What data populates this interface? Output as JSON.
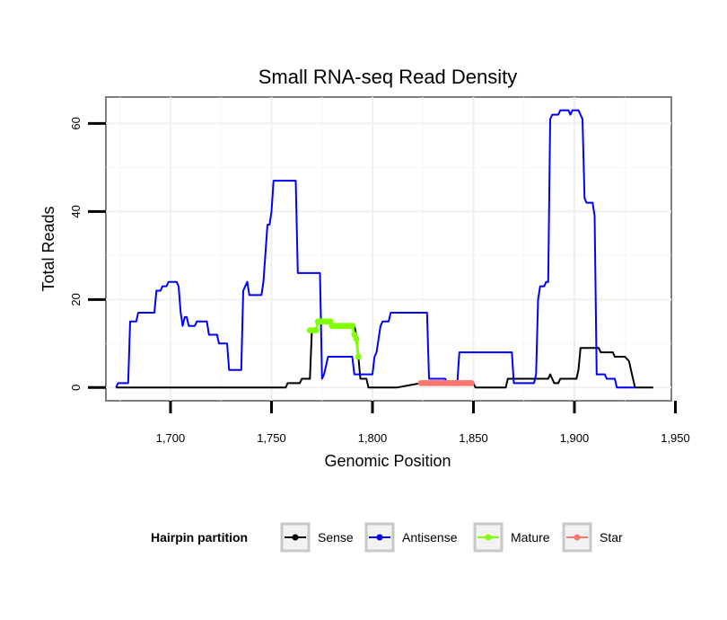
{
  "chart_data": {
    "type": "line",
    "title": "Small RNA-seq Read Density",
    "xlabel": "Genomic Position",
    "ylabel": "Total Reads",
    "xlim": [
      1668,
      1948
    ],
    "ylim": [
      -3,
      66
    ],
    "x_ticks": [
      1700,
      1750,
      1800,
      1850,
      1900,
      1950
    ],
    "x_tick_labels": [
      "1,700",
      "1,750",
      "1,800",
      "1,850",
      "1,900",
      "1,950"
    ],
    "y_ticks": [
      0,
      20,
      40,
      60
    ],
    "y_tick_labels": [
      "0",
      "20",
      "40",
      "60"
    ],
    "grid": true,
    "legend": {
      "title": "Hairpin partition",
      "position": "bottom",
      "entries": [
        "Sense",
        "Antisense",
        "Mature",
        "Star"
      ]
    },
    "series": [
      {
        "name": "Sense",
        "color": "#000000",
        "style": "line",
        "points": [
          [
            1673,
            0
          ],
          [
            1757,
            0
          ],
          [
            1758,
            1
          ],
          [
            1763,
            1
          ],
          [
            1764,
            1
          ],
          [
            1765,
            2
          ],
          [
            1769,
            2
          ],
          [
            1770,
            13
          ],
          [
            1772,
            13
          ],
          [
            1773,
            15
          ],
          [
            1779,
            15
          ],
          [
            1780,
            14
          ],
          [
            1791,
            14
          ],
          [
            1792,
            12
          ],
          [
            1793,
            7
          ],
          [
            1794,
            2
          ],
          [
            1797,
            2
          ],
          [
            1798,
            0
          ],
          [
            1812,
            0
          ],
          [
            1824,
            1
          ],
          [
            1850,
            1
          ],
          [
            1851,
            0
          ],
          [
            1866,
            0
          ],
          [
            1867,
            2
          ],
          [
            1887,
            2
          ],
          [
            1888,
            3
          ],
          [
            1890,
            1
          ],
          [
            1892,
            1
          ],
          [
            1893,
            2
          ],
          [
            1901,
            2
          ],
          [
            1902,
            4
          ],
          [
            1903,
            9
          ],
          [
            1912,
            9
          ],
          [
            1913,
            8
          ],
          [
            1919,
            8
          ],
          [
            1920,
            7
          ],
          [
            1925,
            7
          ],
          [
            1927,
            6
          ],
          [
            1928,
            4
          ],
          [
            1930,
            0
          ],
          [
            1939,
            0
          ]
        ]
      },
      {
        "name": "Antisense",
        "color": "#0000ff",
        "style": "line",
        "points": [
          [
            1673,
            0
          ],
          [
            1674,
            1
          ],
          [
            1679,
            1
          ],
          [
            1680,
            15
          ],
          [
            1683,
            15
          ],
          [
            1684,
            17
          ],
          [
            1692,
            17
          ],
          [
            1693,
            22
          ],
          [
            1695,
            22
          ],
          [
            1696,
            23
          ],
          [
            1698,
            23
          ],
          [
            1699,
            24
          ],
          [
            1703,
            24
          ],
          [
            1704,
            23
          ],
          [
            1705,
            17
          ],
          [
            1706,
            14
          ],
          [
            1707,
            16
          ],
          [
            1708,
            16
          ],
          [
            1709,
            14
          ],
          [
            1712,
            14
          ],
          [
            1713,
            15
          ],
          [
            1718,
            15
          ],
          [
            1719,
            12
          ],
          [
            1723,
            12
          ],
          [
            1724,
            10
          ],
          [
            1728,
            10
          ],
          [
            1729,
            4
          ],
          [
            1735,
            4
          ],
          [
            1736,
            22
          ],
          [
            1738,
            24
          ],
          [
            1739,
            21
          ],
          [
            1745,
            21
          ],
          [
            1746,
            24
          ],
          [
            1748,
            37
          ],
          [
            1749,
            37
          ],
          [
            1750,
            40
          ],
          [
            1751,
            47
          ],
          [
            1762,
            47
          ],
          [
            1763,
            26
          ],
          [
            1774,
            26
          ],
          [
            1775,
            2
          ],
          [
            1776,
            3
          ],
          [
            1777,
            5
          ],
          [
            1778,
            7
          ],
          [
            1790,
            7
          ],
          [
            1791,
            3
          ],
          [
            1795,
            3
          ],
          [
            1800,
            3
          ],
          [
            1801,
            7
          ],
          [
            1802,
            8
          ],
          [
            1804,
            14
          ],
          [
            1805,
            15
          ],
          [
            1808,
            15
          ],
          [
            1809,
            17
          ],
          [
            1827,
            17
          ],
          [
            1828,
            2
          ],
          [
            1836,
            2
          ],
          [
            1837,
            1
          ],
          [
            1842,
            1
          ],
          [
            1843,
            8
          ],
          [
            1869,
            8
          ],
          [
            1870,
            1
          ],
          [
            1880,
            1
          ],
          [
            1881,
            3
          ],
          [
            1882,
            20
          ],
          [
            1883,
            23
          ],
          [
            1885,
            23
          ],
          [
            1886,
            24
          ],
          [
            1887,
            24
          ],
          [
            1888,
            61
          ],
          [
            1889,
            62
          ],
          [
            1892,
            62
          ],
          [
            1893,
            63
          ],
          [
            1897,
            63
          ],
          [
            1898,
            62
          ],
          [
            1899,
            63
          ],
          [
            1902,
            63
          ],
          [
            1904,
            61
          ],
          [
            1905,
            43
          ],
          [
            1906,
            42
          ],
          [
            1909,
            42
          ],
          [
            1910,
            39
          ],
          [
            1911,
            3
          ],
          [
            1915,
            3
          ],
          [
            1916,
            2
          ],
          [
            1920,
            2
          ],
          [
            1921,
            0
          ],
          [
            1930,
            0
          ]
        ]
      },
      {
        "name": "Mature",
        "color": "#7fff00",
        "style": "dots",
        "points": [
          [
            1769,
            13
          ],
          [
            1770,
            13
          ],
          [
            1771,
            13
          ],
          [
            1772,
            13
          ],
          [
            1773,
            15
          ],
          [
            1774,
            15
          ],
          [
            1775,
            15
          ],
          [
            1776,
            15
          ],
          [
            1777,
            15
          ],
          [
            1778,
            15
          ],
          [
            1779,
            15
          ],
          [
            1780,
            14
          ],
          [
            1781,
            14
          ],
          [
            1782,
            14
          ],
          [
            1783,
            14
          ],
          [
            1784,
            14
          ],
          [
            1785,
            14
          ],
          [
            1786,
            14
          ],
          [
            1787,
            14
          ],
          [
            1788,
            14
          ],
          [
            1789,
            14
          ],
          [
            1790,
            14
          ],
          [
            1791,
            12
          ],
          [
            1792,
            11
          ],
          [
            1793,
            7
          ]
        ]
      },
      {
        "name": "Star",
        "color": "#f8766d",
        "style": "dots",
        "points": [
          [
            1824,
            1
          ],
          [
            1825,
            1
          ],
          [
            1826,
            1
          ],
          [
            1827,
            1
          ],
          [
            1828,
            1
          ],
          [
            1829,
            1
          ],
          [
            1830,
            1
          ],
          [
            1831,
            1
          ],
          [
            1832,
            1
          ],
          [
            1833,
            1
          ],
          [
            1834,
            1
          ],
          [
            1835,
            1
          ],
          [
            1836,
            1
          ],
          [
            1837,
            1
          ],
          [
            1838,
            1
          ],
          [
            1839,
            1
          ],
          [
            1840,
            1
          ],
          [
            1841,
            1
          ],
          [
            1842,
            1
          ],
          [
            1843,
            1
          ],
          [
            1844,
            1
          ],
          [
            1845,
            1
          ],
          [
            1846,
            1
          ],
          [
            1847,
            1
          ],
          [
            1848,
            1
          ],
          [
            1849,
            1
          ]
        ]
      }
    ]
  }
}
